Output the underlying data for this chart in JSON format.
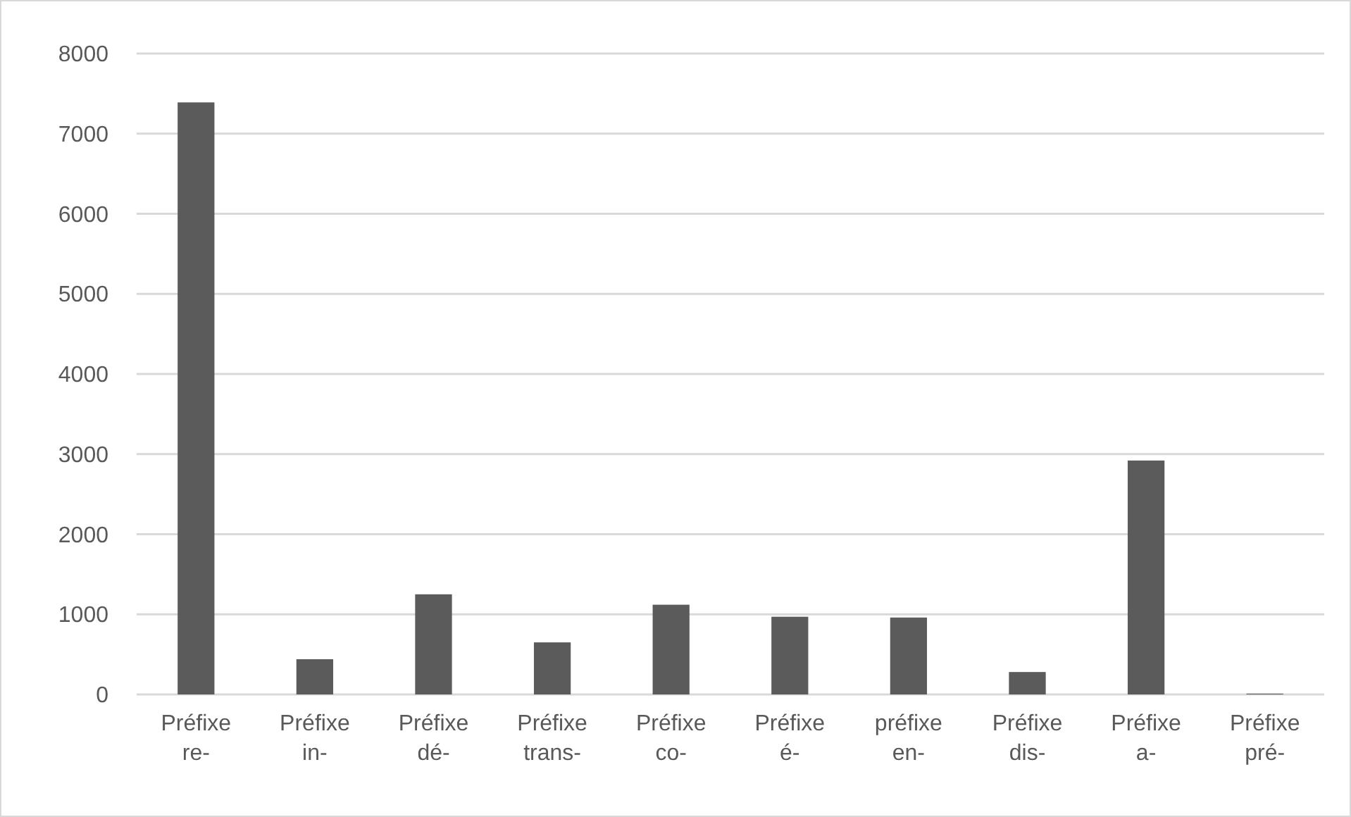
{
  "chart_data": {
    "type": "bar",
    "categories": [
      "Préfixe re-",
      "Préfixe in-",
      "Préfixe dé-",
      "Préfixe trans-",
      "Préfixe co-",
      "Préfixe é-",
      "préfixe en-",
      "Préfixe dis-",
      "Préfixe a-",
      "Préfixe pré-"
    ],
    "values": [
      7390,
      440,
      1250,
      650,
      1120,
      970,
      960,
      280,
      2920,
      10
    ],
    "color": "#5b5b5b",
    "ylim": [
      0,
      8000
    ],
    "yticks": [
      0,
      1000,
      2000,
      3000,
      4000,
      5000,
      6000,
      7000,
      8000
    ],
    "grid": "y"
  }
}
